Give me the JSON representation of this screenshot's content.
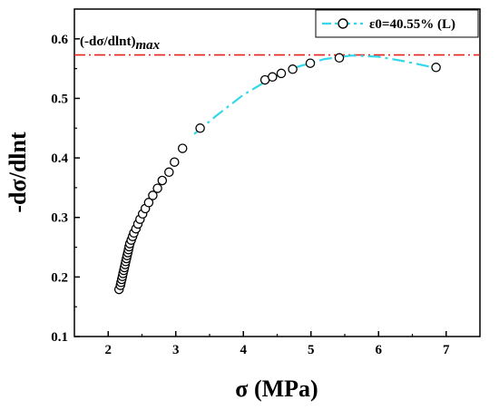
{
  "chart_data": {
    "type": "scatter",
    "title": "",
    "xlabel": "σ (MPa)",
    "ylabel": "-dσ/dlnt",
    "xlim": [
      1.5,
      7.5
    ],
    "ylim": [
      0.1,
      0.65
    ],
    "xticks": [
      "2",
      "3",
      "4",
      "5",
      "6",
      "7"
    ],
    "yticks": [
      "0.1",
      "0.2",
      "0.3",
      "0.4",
      "0.5",
      "0.6"
    ],
    "legend_position": "top-right",
    "grid": false,
    "series": [
      {
        "name": "ε0=40.55% (L)",
        "marker": "open-circle",
        "fit_line_style": "dash-dot",
        "fit_color": "#33d8e8",
        "x": [
          2.16,
          2.18,
          2.19,
          2.2,
          2.21,
          2.22,
          2.23,
          2.24,
          2.25,
          2.26,
          2.27,
          2.28,
          2.29,
          2.3,
          2.31,
          2.32,
          2.34,
          2.36,
          2.38,
          2.41,
          2.44,
          2.47,
          2.51,
          2.55,
          2.6,
          2.66,
          2.73,
          2.8,
          2.9,
          2.98,
          3.1,
          3.36,
          4.32,
          4.43,
          4.56,
          4.73,
          4.99,
          5.42,
          6.85
        ],
        "y": [
          0.179,
          0.186,
          0.191,
          0.196,
          0.201,
          0.206,
          0.211,
          0.216,
          0.221,
          0.226,
          0.231,
          0.236,
          0.241,
          0.246,
          0.251,
          0.256,
          0.262,
          0.268,
          0.274,
          0.281,
          0.289,
          0.297,
          0.306,
          0.315,
          0.325,
          0.337,
          0.349,
          0.362,
          0.376,
          0.393,
          0.416,
          0.45,
          0.531,
          0.536,
          0.542,
          0.549,
          0.559,
          0.568,
          0.552
        ],
        "fit": {
          "x": [
            3.27,
            3.6,
            4.0,
            4.4,
            4.8,
            5.2,
            5.6,
            6.0,
            6.4,
            6.85
          ],
          "y": [
            0.44,
            0.471,
            0.506,
            0.533,
            0.553,
            0.566,
            0.572,
            0.57,
            0.562,
            0.551
          ]
        }
      }
    ],
    "reference_line": {
      "y": 0.573,
      "label": "(-dσ/dlnt)",
      "label_subscript": "max",
      "color": "#e8231c",
      "style": "dash-dot"
    }
  }
}
